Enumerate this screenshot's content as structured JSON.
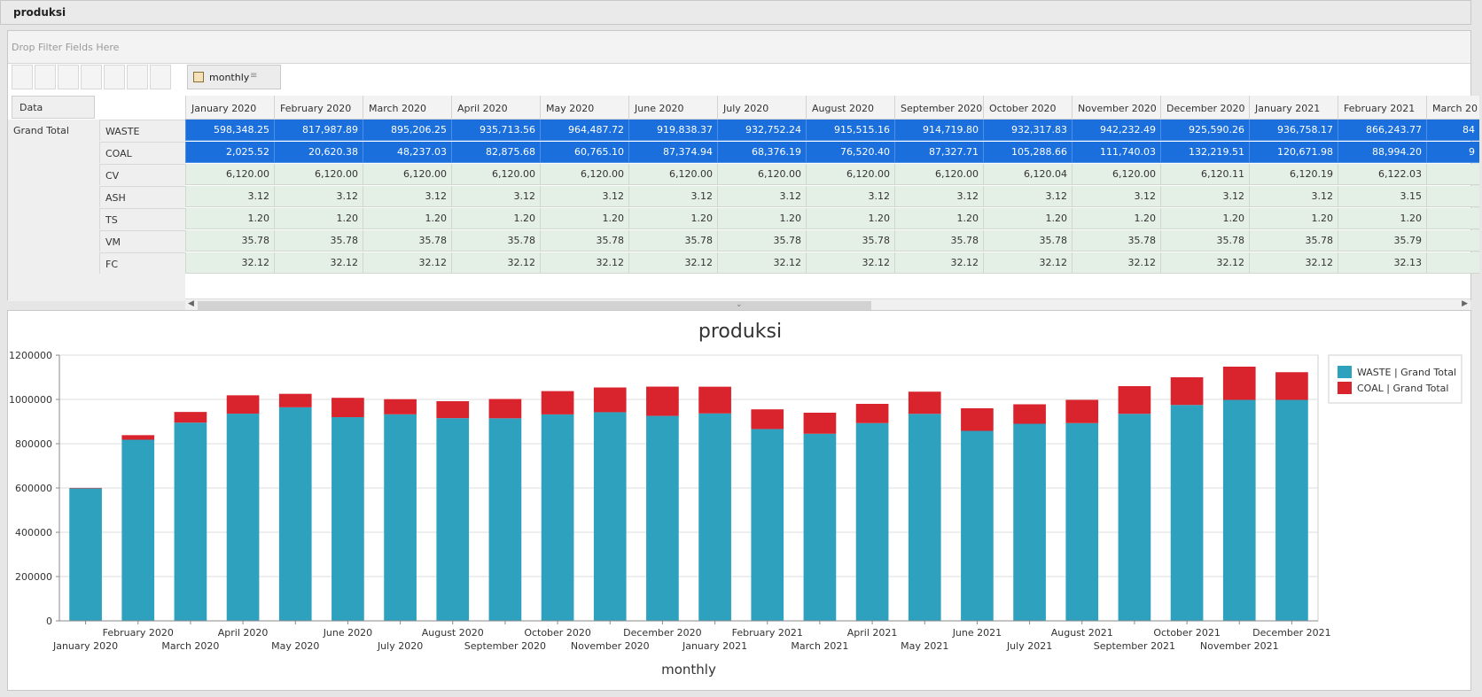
{
  "window": {
    "title": "produksi"
  },
  "pivot": {
    "filter_placeholder": "Drop Filter Fields Here",
    "column_field": "monthly",
    "data_label": "Data",
    "grand_total_label": "Grand Total",
    "columns": [
      "January 2020",
      "February 2020",
      "March 2020",
      "April 2020",
      "May 2020",
      "June 2020",
      "July 2020",
      "August 2020",
      "September 2020",
      "October 2020",
      "November 2020",
      "December 2020",
      "January 2021",
      "February 2021",
      "March 20"
    ],
    "rows": [
      {
        "label": "WASTE",
        "highlight": true,
        "values": [
          "598,348.25",
          "817,987.89",
          "895,206.25",
          "935,713.56",
          "964,487.72",
          "919,838.37",
          "932,752.24",
          "915,515.16",
          "914,719.80",
          "932,317.83",
          "942,232.49",
          "925,590.26",
          "936,758.17",
          "866,243.77",
          "84"
        ]
      },
      {
        "label": "COAL",
        "highlight": true,
        "values": [
          "2,025.52",
          "20,620.38",
          "48,237.03",
          "82,875.68",
          "60,765.10",
          "87,374.94",
          "68,376.19",
          "76,520.40",
          "87,327.71",
          "105,288.66",
          "111,740.03",
          "132,219.51",
          "120,671.98",
          "88,994.20",
          "9"
        ]
      },
      {
        "label": "CV",
        "highlight": false,
        "values": [
          "6,120.00",
          "6,120.00",
          "6,120.00",
          "6,120.00",
          "6,120.00",
          "6,120.00",
          "6,120.00",
          "6,120.00",
          "6,120.00",
          "6,120.04",
          "6,120.00",
          "6,120.11",
          "6,120.19",
          "6,122.03",
          ""
        ]
      },
      {
        "label": "ASH",
        "highlight": false,
        "values": [
          "3.12",
          "3.12",
          "3.12",
          "3.12",
          "3.12",
          "3.12",
          "3.12",
          "3.12",
          "3.12",
          "3.12",
          "3.12",
          "3.12",
          "3.12",
          "3.15",
          ""
        ]
      },
      {
        "label": "TS",
        "highlight": false,
        "values": [
          "1.20",
          "1.20",
          "1.20",
          "1.20",
          "1.20",
          "1.20",
          "1.20",
          "1.20",
          "1.20",
          "1.20",
          "1.20",
          "1.20",
          "1.20",
          "1.20",
          ""
        ]
      },
      {
        "label": "VM",
        "highlight": false,
        "values": [
          "35.78",
          "35.78",
          "35.78",
          "35.78",
          "35.78",
          "35.78",
          "35.78",
          "35.78",
          "35.78",
          "35.78",
          "35.78",
          "35.78",
          "35.78",
          "35.79",
          ""
        ]
      },
      {
        "label": "FC",
        "highlight": false,
        "values": [
          "32.12",
          "32.12",
          "32.12",
          "32.12",
          "32.12",
          "32.12",
          "32.12",
          "32.12",
          "32.12",
          "32.12",
          "32.12",
          "32.12",
          "32.12",
          "32.13",
          ""
        ]
      }
    ]
  },
  "icons": {
    "calendar": "calendar-icon",
    "sort": "sort-icon",
    "scroll_left": "arrow-left-icon",
    "scroll_right": "arrow-right-icon",
    "splitter": "chevron-down-icon"
  },
  "chart_data": {
    "type": "bar",
    "stacked": true,
    "title": "produksi",
    "xlabel": "monthly",
    "ylabel": "",
    "ylim": [
      0,
      1200000
    ],
    "yticks": [
      "0",
      "200000",
      "400000",
      "600000",
      "800000",
      "1000000",
      "1200000"
    ],
    "grid": true,
    "legend_position": "top-right",
    "categories": [
      "January 2020",
      "February 2020",
      "March 2020",
      "April 2020",
      "May 2020",
      "June 2020",
      "July 2020",
      "August 2020",
      "September 2020",
      "October 2020",
      "November 2020",
      "December 2020",
      "January 2021",
      "February 2021",
      "March 2021",
      "April 2021",
      "May 2021",
      "June 2021",
      "July 2021",
      "August 2021",
      "September 2021",
      "October 2021",
      "November 2021",
      "December 2021"
    ],
    "series": [
      {
        "name": "WASTE | Grand Total",
        "color": "#2ea1bf",
        "values": [
          598348,
          817988,
          895206,
          935714,
          964488,
          919838,
          932752,
          915515,
          914720,
          932318,
          942232,
          925590,
          936758,
          866244,
          845000,
          893000,
          935000,
          858000,
          890000,
          893000,
          935000,
          975000,
          998000,
          998000
        ]
      },
      {
        "name": "COAL | Grand Total",
        "color": "#d9242e",
        "values": [
          2026,
          20620,
          48237,
          82876,
          60765,
          87375,
          68376,
          76520,
          87328,
          105289,
          111740,
          132220,
          120672,
          88994,
          95000,
          87000,
          100000,
          102000,
          88000,
          105000,
          125000,
          125000,
          150000,
          125000
        ]
      }
    ]
  }
}
